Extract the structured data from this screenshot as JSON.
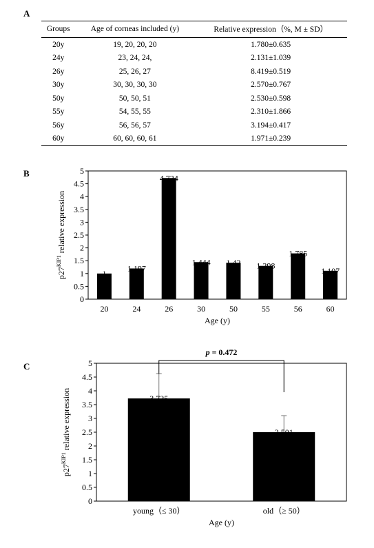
{
  "panels": {
    "a": "A",
    "b": "B",
    "c": "C"
  },
  "table": {
    "headers": [
      "Groups",
      "Age of corneas included (y)",
      "Relative expression（%, M ± SD）"
    ],
    "rows": [
      [
        "20y",
        "19, 20, 20, 20",
        "1.780±0.635"
      ],
      [
        "24y",
        "23, 24, 24,",
        "2.131±1.039"
      ],
      [
        "26y",
        "25, 26, 27",
        "8.419±0.519"
      ],
      [
        "30y",
        "30, 30, 30, 30",
        "2.570±0.767"
      ],
      [
        "50y",
        "50, 50, 51",
        "2.530±0.598"
      ],
      [
        "55y",
        "54, 55, 55",
        "2.310±1.866"
      ],
      [
        "56y",
        "56, 56, 57",
        "3.194±0.417"
      ],
      [
        "60y",
        "60, 60, 60, 61",
        "1.971±0.239"
      ]
    ]
  },
  "chart_data": [
    {
      "type": "bar",
      "panel": "B",
      "categories": [
        "20",
        "24",
        "26",
        "30",
        "50",
        "55",
        "56",
        "60"
      ],
      "values": [
        1,
        1.197,
        4.724,
        1.444,
        1.42,
        1.298,
        1.785,
        1.107
      ],
      "data_labels": [
        "1",
        "1.197",
        "4.724",
        "1.444",
        "1.42",
        "1.298",
        "1.785",
        "1.107"
      ],
      "yticks": [
        "0",
        "0.5",
        "1",
        "1.5",
        "2",
        "2.5",
        "3",
        "3.5",
        "4",
        "4.5",
        "5"
      ],
      "ylim": [
        0,
        5
      ],
      "xlabel": "Age (y)",
      "ylabel": {
        "prefix": "p27",
        "sup": "KIP1",
        "suffix": " relative expression"
      },
      "bar_color": "#000000"
    },
    {
      "type": "bar",
      "panel": "C",
      "categories": [
        "young（≤ 30）",
        "old（≥ 50）"
      ],
      "values": [
        3.725,
        2.501
      ],
      "errors": [
        0.9,
        0.6
      ],
      "data_labels": [
        "3.725",
        "2.501"
      ],
      "yticks": [
        "0",
        "0.5",
        "1",
        "1.5",
        "2",
        "2.5",
        "3",
        "3.5",
        "4",
        "4.5",
        "5"
      ],
      "ylim": [
        0,
        5
      ],
      "xlabel": "Age (y)",
      "ylabel": {
        "prefix": "p27",
        "sup": "KIP1",
        "suffix": " relative expression"
      },
      "annotation": {
        "p_label": "p",
        "p_text": " = 0.472"
      },
      "bar_color": "#000000"
    }
  ]
}
